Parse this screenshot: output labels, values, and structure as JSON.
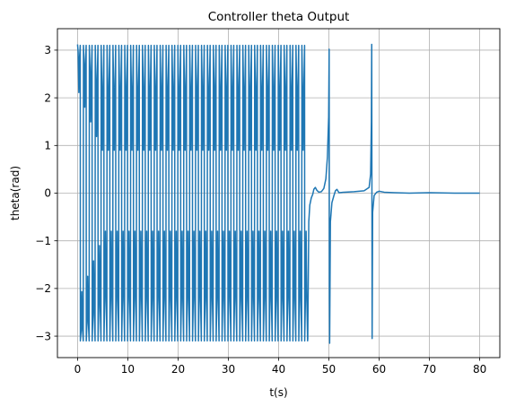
{
  "chart_data": {
    "type": "line",
    "title": "Controller theta Output",
    "xlabel": "t(s)",
    "ylabel": "theta(rad)",
    "xlim": [
      -4,
      84
    ],
    "ylim": [
      -3.45,
      3.45
    ],
    "grid": true,
    "line_color": "#1f77b4",
    "x_ticks": [
      0,
      10,
      20,
      30,
      40,
      50,
      60,
      70,
      80
    ],
    "y_ticks": [
      -3,
      -2,
      -1,
      0,
      1,
      2,
      3
    ],
    "series": [
      {
        "segments": [
          {
            "kind": "oscillation",
            "t_start": 0,
            "t_end": 45.8,
            "cycles": 39,
            "upper_peak": 3.1,
            "upper_trough": 0.9,
            "lower_peak": -3.1,
            "lower_trough": -0.8
          },
          {
            "kind": "points",
            "x": [
              45.8,
              46.0,
              46.2,
              46.5,
              46.8,
              47.0,
              47.3,
              47.6,
              48.0,
              48.5,
              49.0,
              49.4,
              49.7,
              49.95,
              50.05,
              50.1,
              50.15,
              50.3,
              50.6,
              51.0,
              51.3,
              51.6,
              52.0,
              53.0,
              55.0,
              57.0,
              58.0,
              58.3,
              58.45,
              58.52,
              58.6,
              58.7,
              59.0,
              59.5,
              60.0,
              61.0,
              63.0,
              66.0,
              70.0,
              75.0,
              80.0
            ],
            "y": [
              -3.05,
              -0.6,
              -0.25,
              -0.1,
              -0.02,
              0.08,
              0.12,
              0.06,
              0.02,
              0.03,
              0.1,
              0.3,
              0.75,
              1.6,
              3.02,
              -2.2,
              -3.15,
              -0.6,
              -0.2,
              -0.05,
              0.05,
              0.08,
              0.01,
              0.02,
              0.03,
              0.05,
              0.12,
              0.4,
              1.5,
              3.12,
              -3.05,
              -0.4,
              -0.05,
              0.02,
              0.04,
              0.02,
              0.01,
              0.0,
              0.01,
              0.0,
              0.0
            ]
          }
        ]
      }
    ]
  }
}
